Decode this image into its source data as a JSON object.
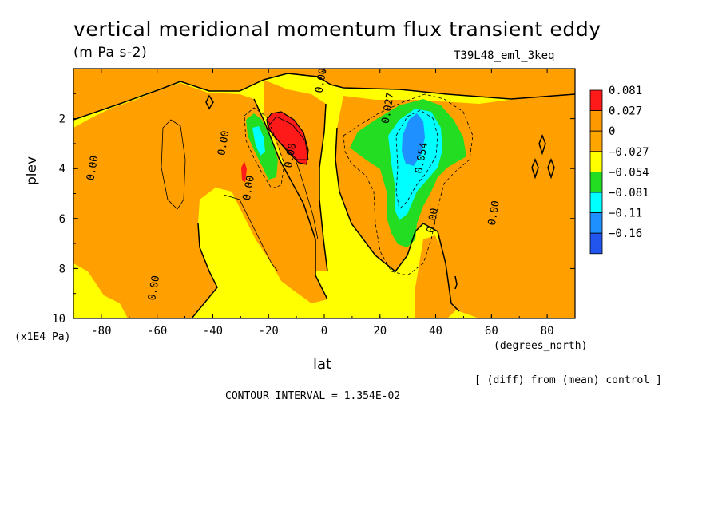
{
  "colors": {
    "above_0p081": "#ff1a1a",
    "0p027_to_0p081": "#ff9900",
    "0_to_0p027": "#ffa500",
    "m0p027_to_0": "#ffff00",
    "m0p054_to_m0p027": "#22dd22",
    "m0p081_to_m0p054": "#00ffff",
    "m0p11_to_m0p081": "#1e90ff",
    "below_m0p16": "#2255ee",
    "background_field": "#ffff00",
    "positive_fill": "#ffa000"
  },
  "chart_data": {
    "type": "contour",
    "title": "vertical meridional momentum flux transient eddy",
    "units": "(m Pa s-2)",
    "run_label": "T39L48_eml_3keq",
    "xlabel": "lat",
    "xunit": "(degrees_north)",
    "ylabel": "plev",
    "yunit": "(x1E4 Pa)",
    "xlim": [
      -90,
      90
    ],
    "ylim": [
      10,
      0
    ],
    "y_log": false,
    "grid": false,
    "legend_position": "right",
    "x_ticks": [
      "-80",
      "-60",
      "-40",
      "-20",
      "0",
      "20",
      "40",
      "60",
      "80"
    ],
    "x_tick_values": [
      -80,
      -60,
      -40,
      -20,
      0,
      20,
      40,
      60,
      80
    ],
    "y_ticks": [
      "2",
      "4",
      "6",
      "8",
      "10"
    ],
    "y_tick_values": [
      2,
      4,
      6,
      8,
      10
    ],
    "legend_levels": [
      "0.081",
      "0.027",
      "0",
      "−0.027",
      "−0.054",
      "−0.081",
      "−0.11",
      "−0.16"
    ],
    "contour_labels": [
      {
        "text": "0.00",
        "lat": -82,
        "plev": 4.0
      },
      {
        "text": "0.00",
        "lat": -35,
        "plev": 3.0
      },
      {
        "text": "0.00",
        "lat": -26,
        "plev": 4.8
      },
      {
        "text": "0.00",
        "lat": -60,
        "plev": 8.8
      },
      {
        "text": "0.00",
        "lat": -11,
        "plev": 3.5
      },
      {
        "text": "0.00",
        "lat": 0,
        "plev": 0.5
      },
      {
        "text": "0.027",
        "lat": 24,
        "plev": 1.6
      },
      {
        "text": "0.054",
        "lat": 36,
        "plev": 3.6
      },
      {
        "text": "0.00",
        "lat": 40,
        "plev": 6.1
      },
      {
        "text": "0.00",
        "lat": 62,
        "plev": 5.8
      }
    ],
    "extrema": [
      {
        "kind": "max",
        "lat": -16,
        "plev": 2.9,
        "level": "0.081"
      },
      {
        "kind": "min",
        "lat": 28,
        "plev": 2.5,
        "level": "−0.11"
      }
    ],
    "note": "[ (diff) from (mean) control ]",
    "contour_interval": "CONTOUR INTERVAL = 1.354E-02"
  }
}
